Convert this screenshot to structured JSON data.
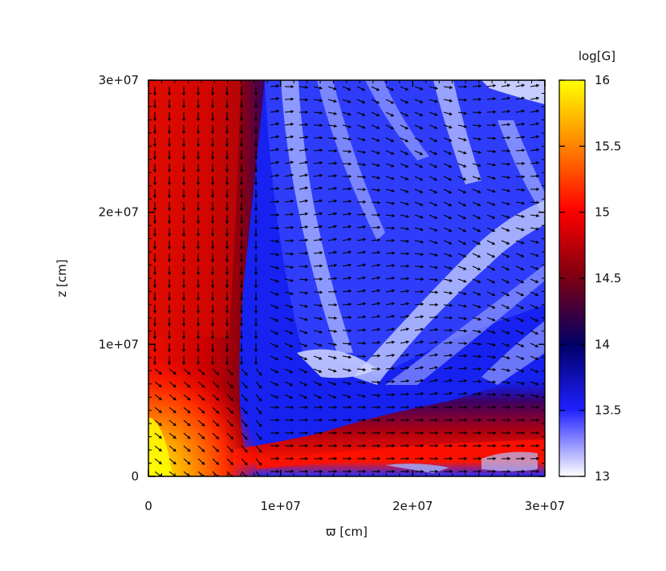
{
  "chart_data": {
    "type": "heatmap",
    "title": "",
    "xlabel": "ϖ [cm]",
    "ylabel": "z [cm]",
    "xlim": [
      0,
      30000000
    ],
    "ylim": [
      0,
      30000000
    ],
    "x_ticks": [
      {
        "value": 0,
        "label": "0"
      },
      {
        "value": 10000000,
        "label": "1e+07"
      },
      {
        "value": 20000000,
        "label": "2e+07"
      },
      {
        "value": 30000000,
        "label": "3e+07"
      }
    ],
    "y_ticks": [
      {
        "value": 0,
        "label": "0"
      },
      {
        "value": 10000000,
        "label": "1e+07"
      },
      {
        "value": 20000000,
        "label": "2e+07"
      },
      {
        "value": 30000000,
        "label": "3e+07"
      }
    ],
    "colorbar": {
      "label": "log[G]",
      "range": [
        13,
        16
      ],
      "ticks": [
        {
          "value": 13,
          "label": "13"
        },
        {
          "value": 13.5,
          "label": "13.5"
        },
        {
          "value": 14,
          "label": "14"
        },
        {
          "value": 14.5,
          "label": "14.5"
        },
        {
          "value": 15,
          "label": "15"
        },
        {
          "value": 15.5,
          "label": "15.5"
        },
        {
          "value": 16,
          "label": "16"
        }
      ],
      "colors": [
        "#ffffff",
        "#0000ff",
        "#000064",
        "#8b0000",
        "#ff0000",
        "#ff8000",
        "#ffff00"
      ]
    },
    "overlay": "magnetic field vectors (arrows)",
    "grid": false
  }
}
